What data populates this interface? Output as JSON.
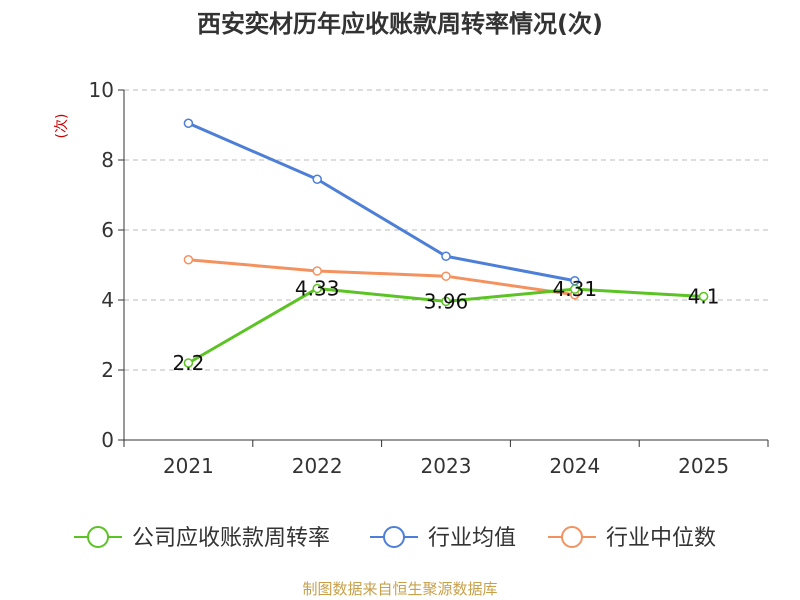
{
  "chart_data": {
    "type": "line",
    "title": "西安奕材历年应收账款周转率情况(次)",
    "ylabel": "(次)",
    "xlabel": "",
    "categories": [
      "2021",
      "2022",
      "2023",
      "2024",
      "2025"
    ],
    "ylim": [
      0,
      10
    ],
    "yticks": [
      "0",
      "2",
      "4",
      "6",
      "8",
      "10"
    ],
    "grid": true,
    "legend_position": "bottom",
    "series": [
      {
        "name": "公司应收账款周转率",
        "color": "#5bc324",
        "values": [
          2.2,
          4.33,
          3.96,
          4.31,
          4.1
        ],
        "labels": [
          "2.2",
          "4.33",
          "3.96",
          "4.31",
          "4.1"
        ]
      },
      {
        "name": "行业均值",
        "color": "#4d7fd8",
        "values": [
          9.05,
          7.45,
          5.25,
          4.55,
          null
        ]
      },
      {
        "name": "行业中位数",
        "color": "#f4925f",
        "values": [
          5.15,
          4.83,
          4.68,
          4.15,
          null
        ]
      }
    ],
    "source": "制图数据来自恒生聚源数据库",
    "colors": {
      "axis": "#333333",
      "grid": "#bbbbbb",
      "ylabel": "#cc0000",
      "source": "#c8a04a"
    }
  }
}
